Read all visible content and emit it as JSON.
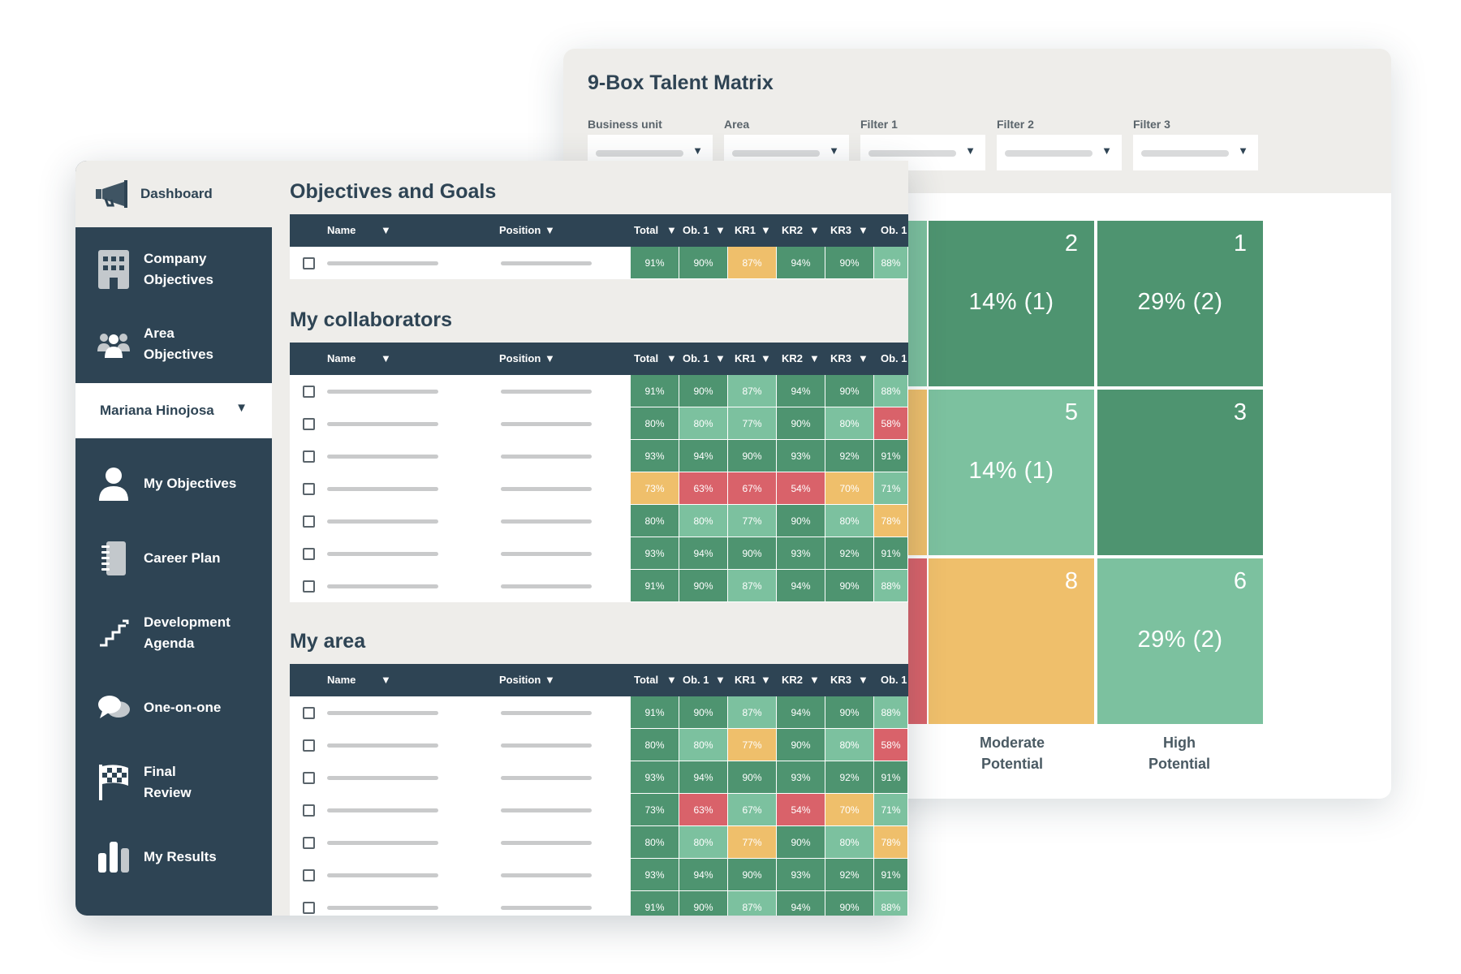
{
  "matrix": {
    "title": "9-Box Talent Matrix",
    "filters": [
      {
        "label": "Business unit"
      },
      {
        "label": "Area"
      },
      {
        "label": "Filter 1"
      },
      {
        "label": "Filter 2"
      },
      {
        "label": "Filter 3"
      }
    ],
    "cells": {
      "c2": {
        "number": "2",
        "value": "14% (1)"
      },
      "c1": {
        "number": "1",
        "value": "29% (2)"
      },
      "c5": {
        "number": "5",
        "value": "14% (1)"
      },
      "c3": {
        "number": "3",
        "value": ""
      },
      "c8": {
        "number": "8",
        "value": ""
      },
      "c6": {
        "number": "6",
        "value": "29% (2)"
      }
    },
    "axis": {
      "moderate": "Moderate\nPotential",
      "high": "High\nPotential"
    },
    "colors": {
      "dark_green": "#4e9470",
      "light_green": "#7cc19f",
      "orange": "#efbf6b",
      "red": "#d9626a"
    }
  },
  "sidebar": {
    "dashboard": "Dashboard",
    "items": [
      {
        "label": "Company\nObjectives",
        "icon": "building-icon"
      },
      {
        "label": "Area\nObjectives",
        "icon": "group-icon"
      },
      {
        "label": "My Objectives",
        "icon": "person-icon"
      },
      {
        "label": "Career Plan",
        "icon": "notebook-icon"
      },
      {
        "label": "Development\nAgenda",
        "icon": "stairs-icon"
      },
      {
        "label": "One-on-one",
        "icon": "chat-icon"
      },
      {
        "label": "Final\nReview",
        "icon": "checkered-flag-icon"
      },
      {
        "label": "My Results",
        "icon": "bar-chart-icon"
      }
    ],
    "user": "Mariana Hinojosa"
  },
  "columns": {
    "name": "Name",
    "position": "Position",
    "total": "Total",
    "ob1": "Ob. 1",
    "kr1": "KR1",
    "kr2": "KR2",
    "kr3": "KR3",
    "ob_extra": "Ob. 1"
  },
  "sections": [
    {
      "title": "Objectives and Goals",
      "rows": [
        [
          "91%",
          "90%",
          "87%",
          "94%",
          "90%",
          "88%"
        ]
      ],
      "tones": [
        [
          "dg",
          "dg",
          "or",
          "dg",
          "dg",
          "lg"
        ]
      ]
    },
    {
      "title": "My collaborators",
      "rows": [
        [
          "91%",
          "90%",
          "87%",
          "94%",
          "90%",
          "88%"
        ],
        [
          "80%",
          "80%",
          "77%",
          "90%",
          "80%",
          "58%"
        ],
        [
          "93%",
          "94%",
          "90%",
          "93%",
          "92%",
          "91%"
        ],
        [
          "73%",
          "63%",
          "67%",
          "54%",
          "70%",
          "71%"
        ],
        [
          "80%",
          "80%",
          "77%",
          "90%",
          "80%",
          "78%"
        ],
        [
          "93%",
          "94%",
          "90%",
          "93%",
          "92%",
          "91%"
        ],
        [
          "91%",
          "90%",
          "87%",
          "94%",
          "90%",
          "88%"
        ]
      ],
      "tones": [
        [
          "dg",
          "dg",
          "lg",
          "dg",
          "dg",
          "lg"
        ],
        [
          "dg",
          "lg",
          "lg",
          "dg",
          "lg",
          "rd"
        ],
        [
          "dg",
          "dg",
          "dg",
          "dg",
          "dg",
          "dg"
        ],
        [
          "or",
          "rd",
          "rd",
          "rd",
          "or",
          "lg"
        ],
        [
          "dg",
          "lg",
          "lg",
          "dg",
          "lg",
          "or"
        ],
        [
          "dg",
          "dg",
          "dg",
          "dg",
          "dg",
          "dg"
        ],
        [
          "dg",
          "dg",
          "lg",
          "dg",
          "dg",
          "lg"
        ]
      ]
    },
    {
      "title": "My area",
      "rows": [
        [
          "91%",
          "90%",
          "87%",
          "94%",
          "90%",
          "88%"
        ],
        [
          "80%",
          "80%",
          "77%",
          "90%",
          "80%",
          "58%"
        ],
        [
          "93%",
          "94%",
          "90%",
          "93%",
          "92%",
          "91%"
        ],
        [
          "73%",
          "63%",
          "67%",
          "54%",
          "70%",
          "71%"
        ],
        [
          "80%",
          "80%",
          "77%",
          "90%",
          "80%",
          "78%"
        ],
        [
          "93%",
          "94%",
          "90%",
          "93%",
          "92%",
          "91%"
        ],
        [
          "91%",
          "90%",
          "87%",
          "94%",
          "90%",
          "88%"
        ]
      ],
      "tones": [
        [
          "dg",
          "dg",
          "lg",
          "dg",
          "dg",
          "lg"
        ],
        [
          "dg",
          "lg",
          "or",
          "dg",
          "lg",
          "rd"
        ],
        [
          "dg",
          "dg",
          "dg",
          "dg",
          "dg",
          "dg"
        ],
        [
          "dg",
          "rd",
          "lg",
          "rd",
          "or",
          "lg"
        ],
        [
          "dg",
          "lg",
          "or",
          "dg",
          "lg",
          "or"
        ],
        [
          "dg",
          "dg",
          "dg",
          "dg",
          "dg",
          "dg"
        ],
        [
          "dg",
          "dg",
          "lg",
          "dg",
          "dg",
          "lg"
        ]
      ]
    }
  ]
}
